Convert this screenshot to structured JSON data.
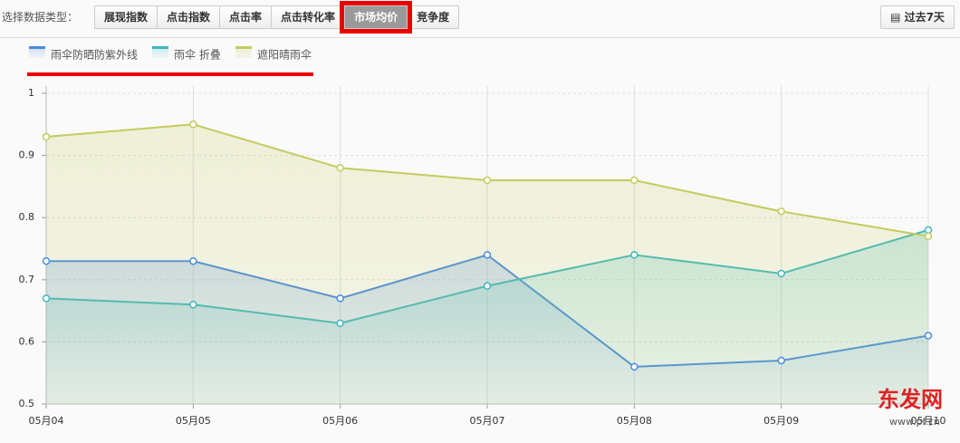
{
  "toolbar": {
    "label": "选择数据类型：",
    "tabs": [
      "展现指数",
      "点击指数",
      "点击率",
      "点击转化率",
      "市场均价",
      "竞争度"
    ],
    "range_button": "过去7天"
  },
  "watermark": {
    "name": "东发网",
    "url": "www.pf.cn"
  },
  "chart_data": {
    "type": "area",
    "categories": [
      "05月04",
      "05月05",
      "05月06",
      "05月07",
      "05月08",
      "05月09",
      "05月10"
    ],
    "series": [
      {
        "name": "雨伞防晒防紫外线",
        "color": "#4a8ae0",
        "values": [
          0.73,
          0.73,
          0.67,
          0.74,
          0.56,
          0.57,
          0.61
        ]
      },
      {
        "name": "雨伞 折叠",
        "color": "#3fb8bc",
        "values": [
          0.67,
          0.66,
          0.63,
          0.69,
          0.74,
          0.71,
          0.78
        ]
      },
      {
        "name": "遮阳晴雨伞",
        "color": "#c3cc5e",
        "values": [
          0.93,
          0.95,
          0.88,
          0.86,
          0.86,
          0.81,
          0.77
        ]
      }
    ],
    "ylim": [
      0.5,
      1
    ],
    "yticks": [
      0.5,
      0.6,
      0.7,
      0.8,
      0.9,
      1
    ],
    "grid": true
  }
}
